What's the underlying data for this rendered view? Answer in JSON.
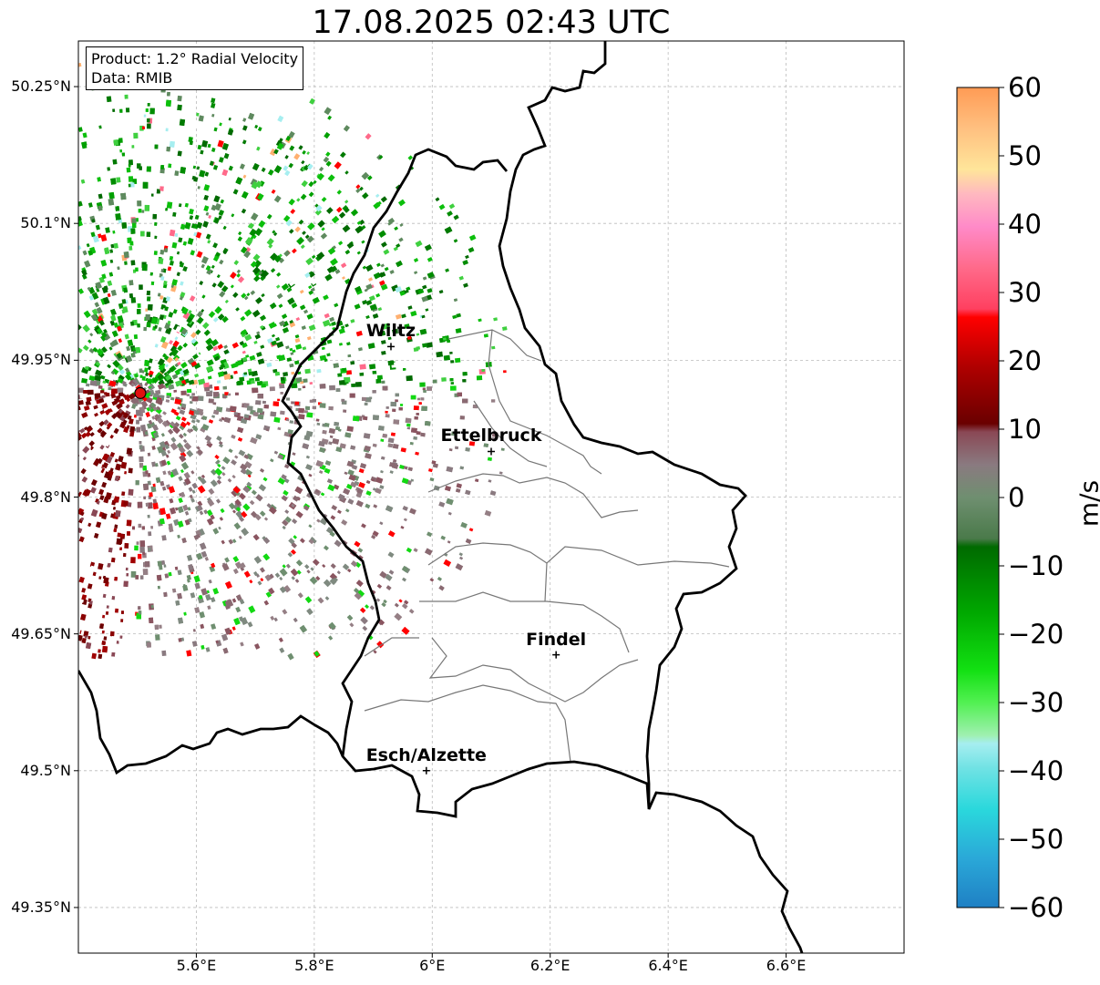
{
  "title": "17.08.2025 02:43 UTC",
  "info": {
    "product": "Product: 1.2° Radial Velocity",
    "source": "Data: RMIB"
  },
  "map_extent": {
    "lon_min": 5.4,
    "lon_max": 6.8,
    "lat_min": 49.3,
    "lat_max": 50.3
  },
  "lat_ticks": [
    {
      "value": 50.25,
      "label": "50.25°N"
    },
    {
      "value": 50.1,
      "label": "50.1°N"
    },
    {
      "value": 49.95,
      "label": "49.95°N"
    },
    {
      "value": 49.8,
      "label": "49.8°N"
    },
    {
      "value": 49.65,
      "label": "49.65°N"
    },
    {
      "value": 49.5,
      "label": "49.5°N"
    },
    {
      "value": 49.35,
      "label": "49.35°N"
    }
  ],
  "lon_ticks": [
    {
      "value": 5.6,
      "label": "5.6°E"
    },
    {
      "value": 5.8,
      "label": "5.8°E"
    },
    {
      "value": 6.0,
      "label": "6°E"
    },
    {
      "value": 6.2,
      "label": "6.2°E"
    },
    {
      "value": 6.4,
      "label": "6.4°E"
    },
    {
      "value": 6.6,
      "label": "6.6°E"
    }
  ],
  "cities": [
    {
      "name": "Wiltz",
      "lon": 5.93,
      "lat": 49.965
    },
    {
      "name": "Ettelbruck",
      "lon": 6.1,
      "lat": 49.85
    },
    {
      "name": "Findel",
      "lon": 6.21,
      "lat": 49.627
    },
    {
      "name": "Esch/Alzette",
      "lon": 5.99,
      "lat": 49.5
    }
  ],
  "radar_site": {
    "lon": 5.505,
    "lat": 49.914
  },
  "colorbar": {
    "unit": "m/s",
    "min": -60,
    "max": 60,
    "ticks": [
      "60",
      "50",
      "40",
      "30",
      "20",
      "10",
      "0",
      "−10",
      "−20",
      "−30",
      "−40",
      "−50",
      "−60"
    ],
    "gradient": [
      "#1f80c4",
      "#2ad8dc",
      "#a6eef0",
      "#9ff0b0",
      "#12d912",
      "#009900",
      "#006a00",
      "#5f8a5f",
      "#8a7a80",
      "#8a4855",
      "#7a0000",
      "#c80000",
      "#ff0000",
      "#ff5c78",
      "#ff8ac8",
      "#ffc0c0",
      "#ffe59a",
      "#ffb070",
      "#ff9b55"
    ]
  }
}
